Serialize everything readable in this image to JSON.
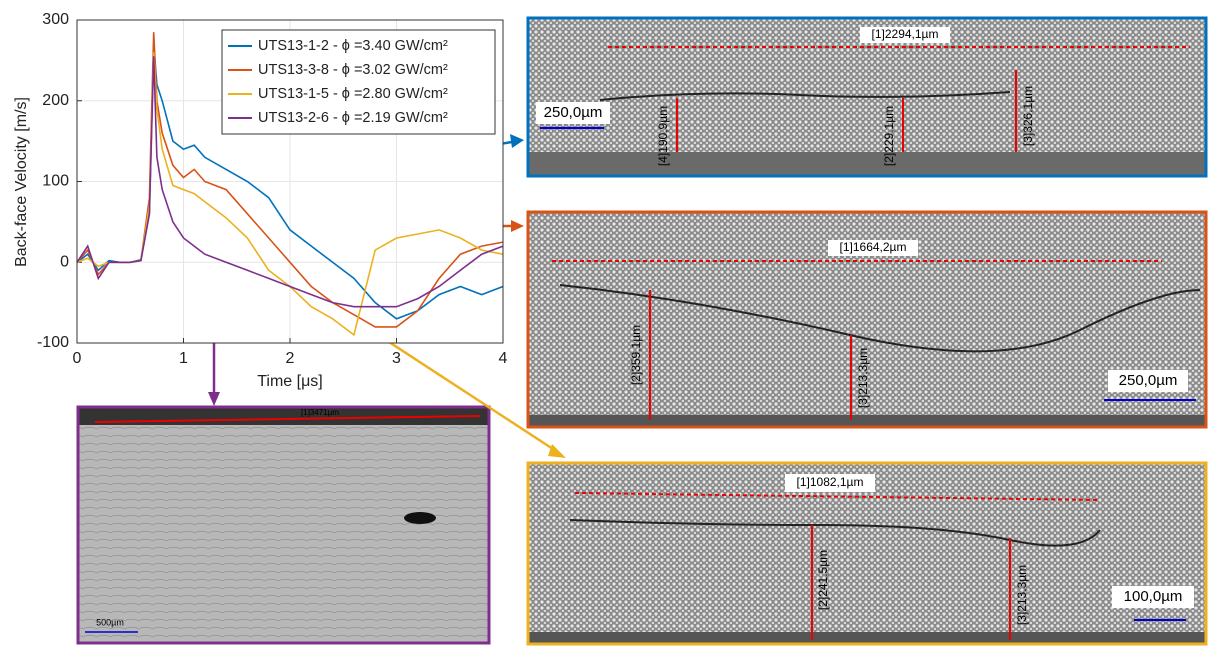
{
  "chart_data": {
    "type": "line",
    "xlabel": "Time [μs]",
    "ylabel": "Back-face Velocity [m/s]",
    "x": [
      0,
      0.1,
      0.2,
      0.3,
      0.4,
      0.5,
      0.6,
      0.68,
      0.72,
      0.75,
      0.8,
      0.9,
      1.0,
      1.1,
      1.2,
      1.4,
      1.6,
      1.8,
      2.0,
      2.2,
      2.4,
      2.6,
      2.8,
      3.0,
      3.2,
      3.4,
      3.6,
      3.8,
      4.0
    ],
    "series": [
      {
        "name": "UTS13-1-2 - ϕ =3.40 GW/cm²",
        "color": "#0072bd",
        "values": [
          0,
          10,
          -10,
          2,
          0,
          0,
          3,
          60,
          270,
          220,
          200,
          150,
          140,
          145,
          130,
          115,
          100,
          80,
          40,
          20,
          0,
          -20,
          -50,
          -70,
          -60,
          -40,
          -30,
          -40,
          -30
        ]
      },
      {
        "name": "UTS13-3-8 - ϕ =3.02 GW/cm²",
        "color": "#d95319",
        "values": [
          0,
          15,
          -15,
          0,
          0,
          0,
          2,
          80,
          285,
          200,
          160,
          120,
          105,
          115,
          100,
          90,
          60,
          30,
          0,
          -30,
          -50,
          -65,
          -80,
          -80,
          -60,
          -20,
          10,
          20,
          25
        ]
      },
      {
        "name": "UTS13-1-5 - ϕ =2.80 GW/cm²",
        "color": "#edb120",
        "values": [
          0,
          5,
          -5,
          0,
          0,
          0,
          2,
          70,
          260,
          190,
          140,
          95,
          90,
          85,
          75,
          55,
          30,
          -10,
          -30,
          -55,
          -70,
          -90,
          15,
          30,
          35,
          40,
          30,
          15,
          10
        ]
      },
      {
        "name": "UTS13-2-6 - ϕ =2.19 GW/cm²",
        "color": "#7e2f8e",
        "values": [
          0,
          20,
          -20,
          0,
          0,
          0,
          2,
          60,
          255,
          130,
          90,
          50,
          30,
          20,
          10,
          0,
          -10,
          -20,
          -30,
          -40,
          -50,
          -55,
          -55,
          -55,
          -45,
          -30,
          -10,
          10,
          20
        ]
      }
    ],
    "xlim": [
      0,
      4
    ],
    "xticks": [
      0,
      1,
      2,
      3,
      4
    ],
    "ylim": [
      -100,
      300
    ],
    "yticks": [
      -100,
      0,
      100,
      200,
      300
    ],
    "grid": true,
    "legend": "upper right"
  },
  "micrographs": [
    {
      "labels": [
        "[1]2294,1µm",
        "250,0µm",
        "[4]190,9µm",
        "[2]229,1µm",
        "[3]326,1µm"
      ]
    },
    {
      "labels": [
        "[1]1664,2µm",
        "[2]359,1µm",
        "[3]213,3µm",
        "250,0µm"
      ]
    },
    {
      "labels": [
        "[1]1082,1µm",
        "[2]241,5µm",
        "[3]213,3µm",
        "100,0µm"
      ]
    },
    {
      "labels": [
        "[1]3471µm",
        "500µm"
      ]
    }
  ]
}
